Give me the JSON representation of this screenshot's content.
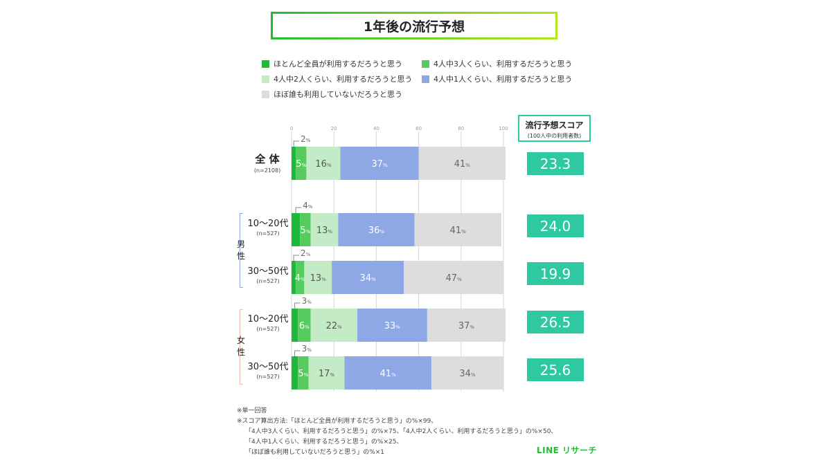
{
  "title": "1年後の流行予想",
  "legend": [
    {
      "label": "ほとんど全員が利用するだろうと思う",
      "color": "#1fb83a"
    },
    {
      "label": "4人中3人くらい、利用するだろうと思う",
      "color": "#56cc5e"
    },
    {
      "label": "4人中2人くらい、利用するだろうと思う",
      "color": "#c3ecc6"
    },
    {
      "label": "4人中1人くらい、利用するだろうと思う",
      "color": "#8ea8e6"
    },
    {
      "label": "ほぼ誰も利用していないだろうと思う",
      "color": "#dddddd"
    }
  ],
  "score_header": {
    "title": "流行予想スコア",
    "subtitle": "(100人中の利用者数)"
  },
  "rows": [
    {
      "label": "全 体",
      "n": "(n=2108)",
      "score": "23.3"
    },
    {
      "label": "10〜20代",
      "n": "(n=527)",
      "score": "24.0"
    },
    {
      "label": "30〜50代",
      "n": "(n=527)",
      "score": "19.9"
    },
    {
      "label": "10〜20代",
      "n": "(n=527)",
      "score": "26.5"
    },
    {
      "label": "30〜50代",
      "n": "(n=527)",
      "score": "25.6"
    }
  ],
  "groups": {
    "male": "男性",
    "female": "女性"
  },
  "chart_data": {
    "type": "bar",
    "orientation": "horizontal",
    "stacked": true,
    "x_ticks": [
      0,
      20,
      40,
      60,
      80,
      100
    ],
    "xlim": [
      0,
      100
    ],
    "unit": "%",
    "categories": [
      "全体",
      "男性 10〜20代",
      "男性 30〜50代",
      "女性 10〜20代",
      "女性 30〜50代"
    ],
    "series": [
      {
        "name": "ほとんど全員が利用するだろうと思う",
        "values": [
          2,
          4,
          2,
          3,
          3
        ]
      },
      {
        "name": "4人中3人くらい、利用するだろうと思う",
        "values": [
          5,
          5,
          4,
          6,
          5
        ]
      },
      {
        "name": "4人中2人くらい、利用するだろうと思う",
        "values": [
          16,
          13,
          13,
          22,
          17
        ]
      },
      {
        "name": "4人中1人くらい、利用するだろうと思う",
        "values": [
          37,
          36,
          34,
          33,
          41
        ]
      },
      {
        "name": "ほぼ誰も利用していないだろうと思う",
        "values": [
          41,
          41,
          47,
          37,
          34
        ]
      }
    ],
    "scores": [
      23.3,
      24.0,
      19.9,
      26.5,
      25.6
    ]
  },
  "notes": [
    "※単一回答",
    "※スコア算出方法:「ほとんど全員が利用するだろうと思う」の%×99、",
    "「4人中3人くらい、利用するだろうと思う」の%×75、「4人中2人くらい、利用するだろうと思う」の%×50、",
    "「4人中1人くらい、利用するだろうと思う」の%×25、",
    "「ほぼ誰も利用していないだろうと思う」の%×1"
  ],
  "brand": "LINE リサーチ",
  "colors": {
    "accent": "#2ec9a0",
    "male": "#8ea8e6",
    "female": "#f2b8a8"
  }
}
